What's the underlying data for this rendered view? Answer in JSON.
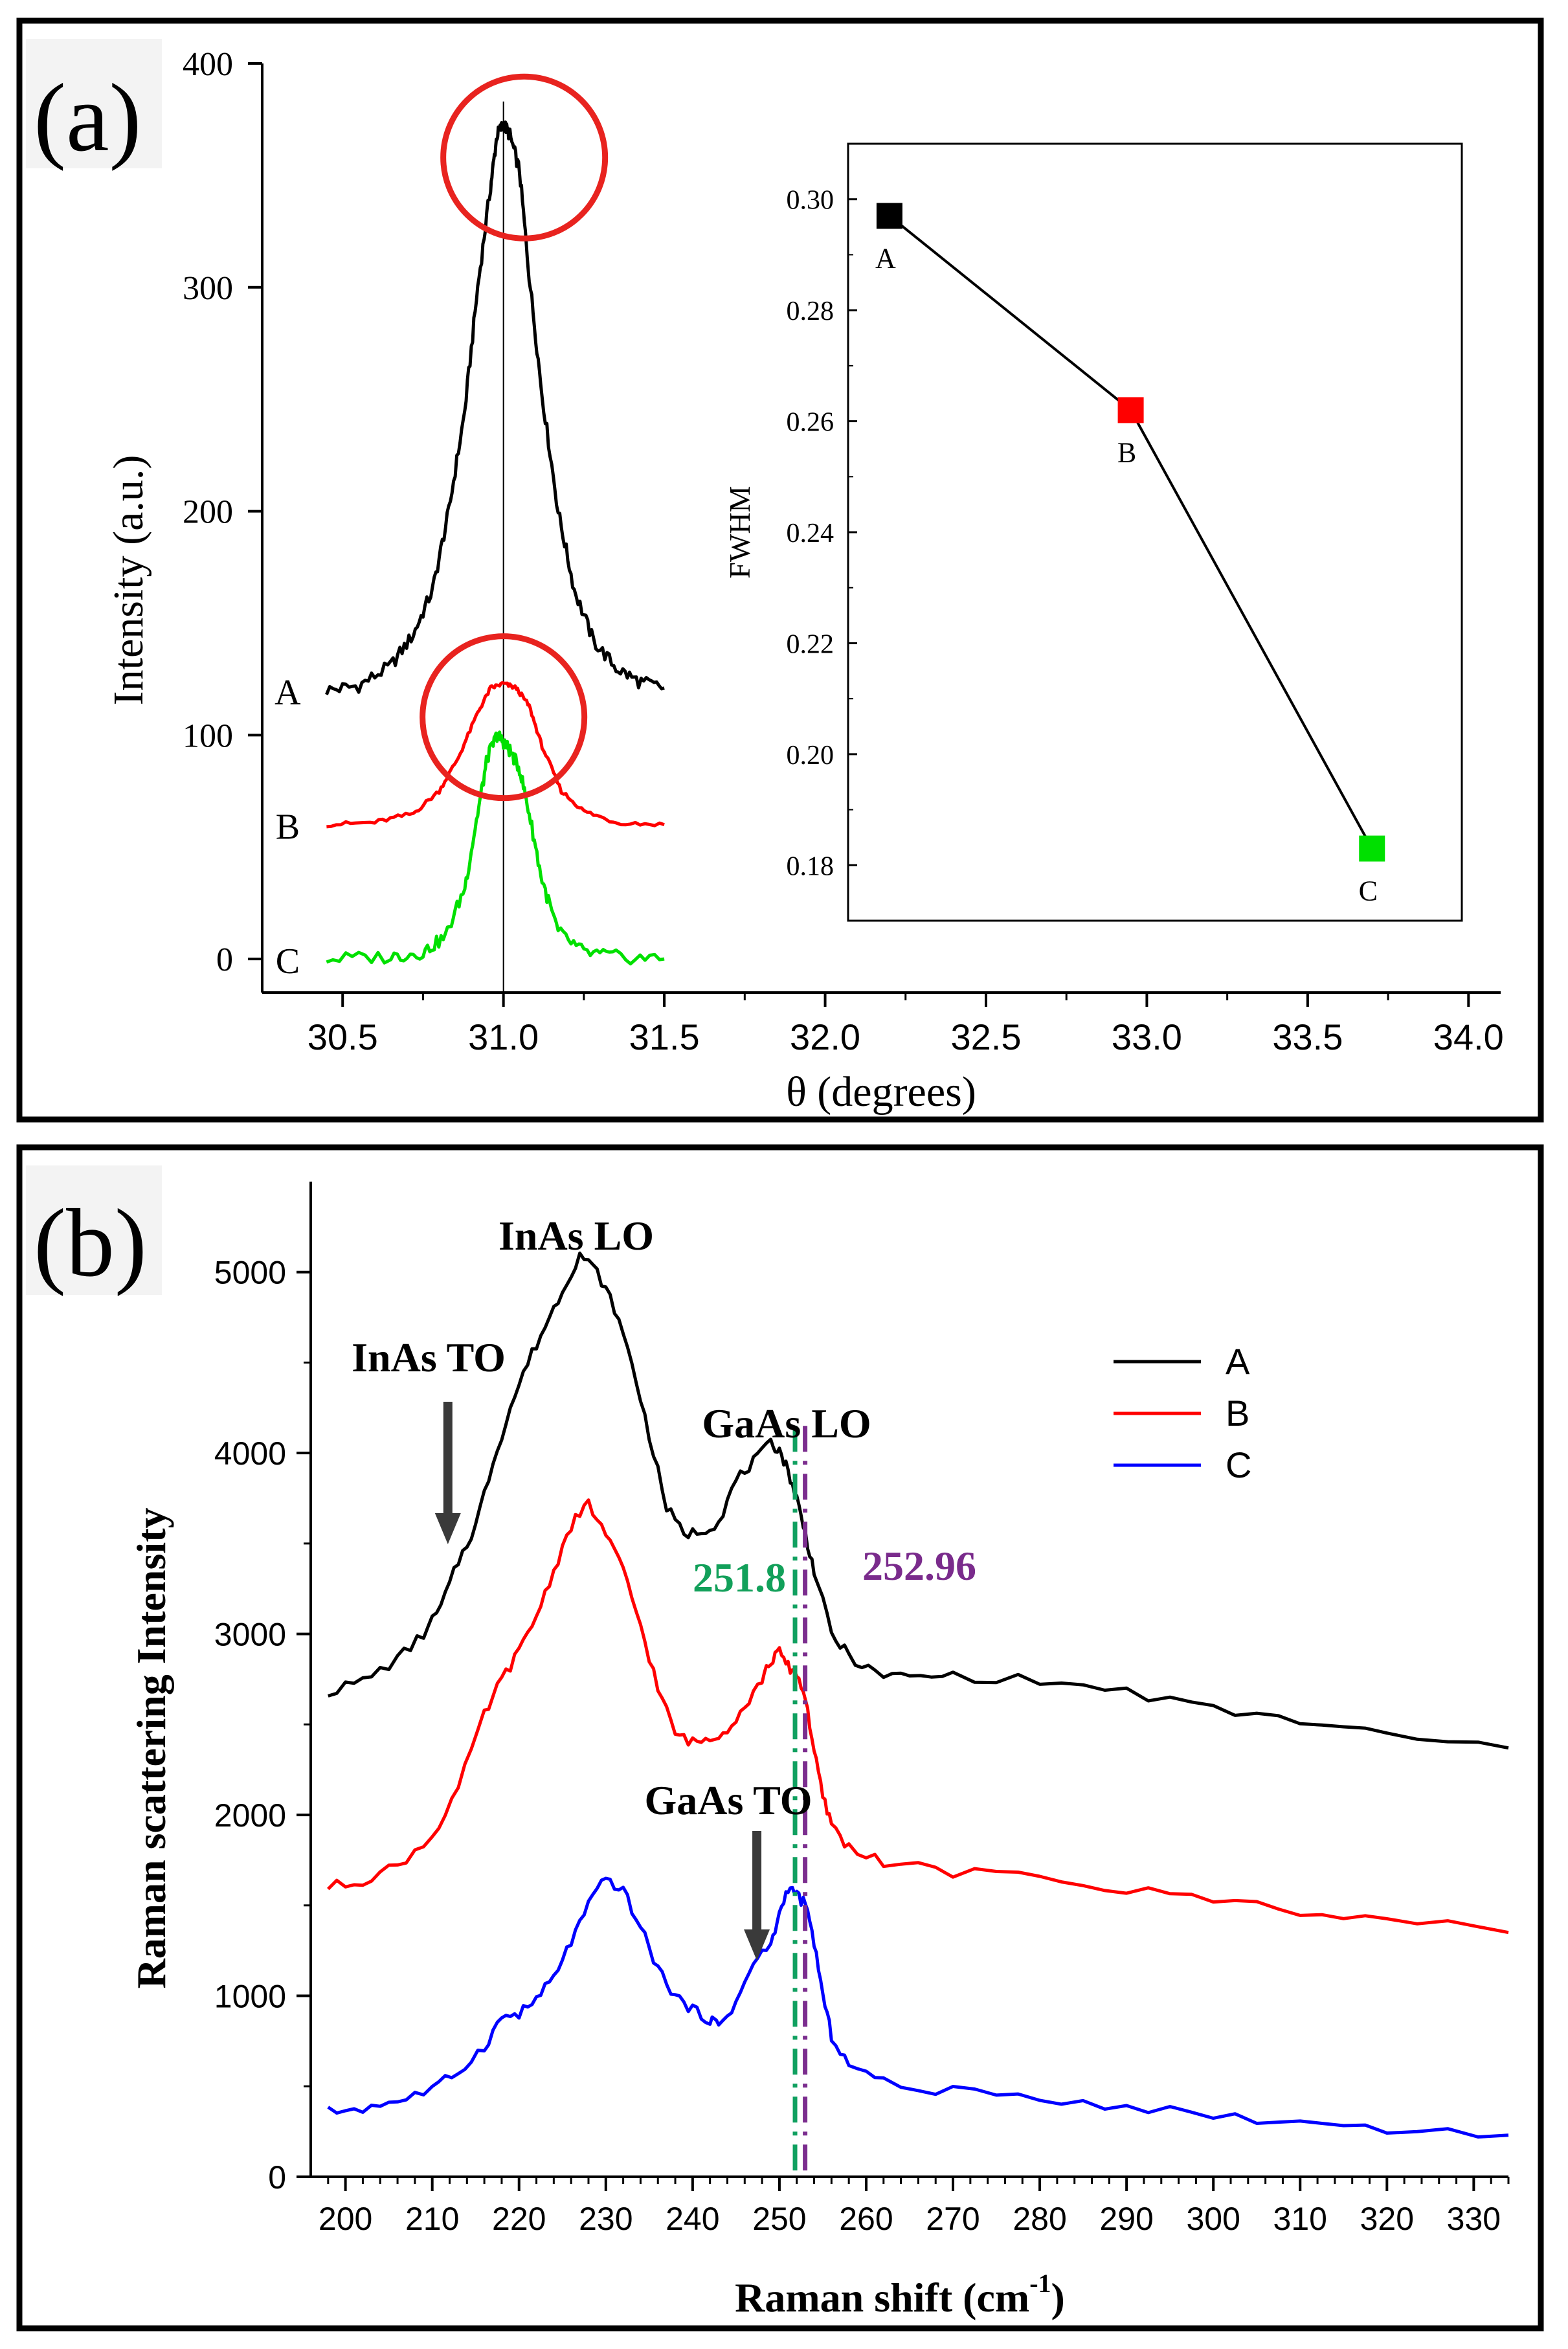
{
  "colors": {
    "black": "#000000",
    "red": "#ff0000",
    "green": "#00e000",
    "blue": "#0000ff",
    "circle": "#e8231f",
    "dash_green": "#10a060",
    "dash_purple": "#7b2d8e",
    "annot_green": "#12a05a",
    "annot_purple": "#7a2b8c",
    "arrow": "#3a3a3a"
  },
  "panel_a": {
    "label": "(a)",
    "xlabel": "θ (degrees)",
    "ylabel": "Intensity (a.u.)",
    "xlim": [
      30.25,
      34.1
    ],
    "ylim": [
      -15,
      400
    ],
    "xticks": [
      "30.5",
      "31.0",
      "31.5",
      "32.0",
      "32.5",
      "33.0",
      "33.5",
      "34.0"
    ],
    "xtick_values": [
      30.5,
      31.0,
      31.5,
      32.0,
      32.5,
      33.0,
      33.5,
      34.0
    ],
    "yticks": [
      "0",
      "100",
      "200",
      "300",
      "400"
    ],
    "ytick_values": [
      0,
      100,
      200,
      300,
      400
    ],
    "reference_line_x": 31.0,
    "series_labels": [
      "A",
      "B",
      "C"
    ],
    "inset": {
      "ylabel": "FWHM",
      "yticks": [
        "0.18",
        "0.20",
        "0.22",
        "0.24",
        "0.26",
        "0.28",
        "0.30"
      ],
      "ytick_values": [
        0.18,
        0.2,
        0.22,
        0.24,
        0.26,
        0.28,
        0.3
      ],
      "ylim": [
        0.17,
        0.31
      ],
      "points": [
        {
          "label": "A",
          "value": 0.297
        },
        {
          "label": "B",
          "value": 0.262
        },
        {
          "label": "C",
          "value": 0.183
        }
      ]
    }
  },
  "panel_b": {
    "label": "(b)",
    "xlabel": "Raman  shift (cm",
    "xlabel_sup": "-1",
    "xlabel_end": ")",
    "ylabel": "Raman  scattering Intensity",
    "xlim": [
      196,
      334
    ],
    "ylim": [
      0,
      5500
    ],
    "xticks": [
      "200",
      "210",
      "220",
      "230",
      "240",
      "250",
      "260",
      "270",
      "280",
      "290",
      "300",
      "310",
      "320",
      "330"
    ],
    "xtick_values": [
      200,
      210,
      220,
      230,
      240,
      250,
      260,
      270,
      280,
      290,
      300,
      310,
      320,
      330
    ],
    "yticks": [
      "0",
      "1000",
      "2000",
      "3000",
      "4000",
      "5000"
    ],
    "ytick_values": [
      0,
      1000,
      2000,
      3000,
      4000,
      5000
    ],
    "legend": [
      "A",
      "B",
      "C"
    ],
    "annotations": {
      "inas_lo": "InAs LO",
      "inas_to": "InAs TO",
      "gaas_lo": "GaAs LO",
      "gaas_to": "GaAs TO",
      "line1": "251.8",
      "line2": "252.96"
    },
    "vlines": [
      251.8,
      252.96
    ]
  },
  "chart_data": [
    {
      "type": "line",
      "title": "(a)",
      "xlabel": "θ (degrees)",
      "ylabel": "Intensity (a.u.)",
      "xlim": [
        30.25,
        34.1
      ],
      "ylim": [
        -15,
        400
      ],
      "series": [
        {
          "name": "A",
          "x": [
            30.45,
            30.55,
            30.65,
            30.72,
            30.78,
            30.83,
            30.88,
            30.92,
            30.96,
            30.98,
            31.0,
            31.02,
            31.05,
            31.08,
            31.12,
            31.17,
            31.22,
            31.28,
            31.35,
            31.42,
            31.5
          ],
          "values": [
            120,
            122,
            131,
            145,
            165,
            200,
            245,
            300,
            345,
            368,
            373,
            368,
            352,
            305,
            252,
            200,
            165,
            142,
            130,
            124,
            121
          ]
        },
        {
          "name": "B",
          "x": [
            30.45,
            30.6,
            30.72,
            30.8,
            30.86,
            30.92,
            30.96,
            31.0,
            31.04,
            31.08,
            31.12,
            31.18,
            31.25,
            31.35,
            31.5
          ],
          "values": [
            60,
            61,
            65,
            75,
            90,
            110,
            121,
            123,
            121,
            113,
            95,
            75,
            66,
            61,
            60
          ]
        },
        {
          "name": "C",
          "x": [
            30.45,
            30.65,
            30.75,
            30.82,
            30.88,
            30.92,
            30.95,
            30.98,
            31.0,
            31.02,
            31.05,
            31.08,
            31.12,
            31.17,
            31.25,
            31.35,
            31.5
          ],
          "values": [
            0,
            1,
            3,
            10,
            32,
            65,
            90,
            100,
            97,
            93,
            85,
            65,
            35,
            12,
            3,
            1,
            0
          ]
        }
      ],
      "inset": {
        "type": "line",
        "ylabel": "FWHM",
        "categories": [
          "A",
          "B",
          "C"
        ],
        "x": [
          32.2,
          32.95,
          33.7
        ],
        "values": [
          0.297,
          0.262,
          0.183
        ]
      }
    },
    {
      "type": "line",
      "title": "(b)",
      "xlabel": "Raman  shift (cm-1)",
      "ylabel": "Raman  scattering Intensity",
      "xlim": [
        196,
        334
      ],
      "ylim": [
        0,
        5500
      ],
      "series": [
        {
          "name": "A",
          "x": [
            198,
            202,
            206,
            209,
            211,
            213,
            215,
            217,
            219,
            221,
            223,
            225,
            227,
            229,
            231,
            233,
            235,
            237,
            239,
            241,
            243,
            245,
            247,
            249,
            250,
            251,
            252,
            253,
            254,
            256,
            258,
            261,
            265,
            270,
            280,
            290,
            300,
            310,
            320,
            334
          ],
          "values": [
            2680,
            2740,
            2860,
            3000,
            3150,
            3400,
            3600,
            3950,
            4250,
            4500,
            4700,
            4900,
            5100,
            5000,
            4800,
            4500,
            4100,
            3700,
            3550,
            3570,
            3620,
            3850,
            3950,
            4050,
            4020,
            3900,
            3750,
            3550,
            3350,
            3000,
            2880,
            2780,
            2760,
            2770,
            2740,
            2680,
            2580,
            2520,
            2440,
            2370
          ]
        },
        {
          "name": "B",
          "x": [
            198,
            202,
            206,
            210,
            213,
            216,
            218,
            220,
            222,
            224,
            226,
            228,
            230,
            232,
            234,
            236,
            238,
            240,
            242,
            244,
            246,
            248,
            249,
            250,
            251,
            252,
            253,
            254,
            255,
            256,
            258,
            262,
            270,
            280,
            290,
            300,
            310,
            320,
            334
          ],
          "values": [
            1600,
            1640,
            1720,
            1880,
            2150,
            2550,
            2750,
            2900,
            3100,
            3350,
            3600,
            3720,
            3550,
            3350,
            3050,
            2700,
            2450,
            2400,
            2420,
            2480,
            2600,
            2750,
            2850,
            2900,
            2820,
            2780,
            2650,
            2350,
            2100,
            1950,
            1820,
            1740,
            1680,
            1660,
            1580,
            1540,
            1470,
            1420,
            1350
          ]
        },
        {
          "name": "C",
          "x": [
            198,
            202,
            206,
            210,
            213,
            216,
            218,
            220,
            222,
            224,
            226,
            228,
            230,
            232,
            234,
            236,
            238,
            240,
            242,
            243,
            245,
            247,
            249,
            250,
            251,
            252,
            253,
            254,
            255,
            256,
            258,
            262,
            270,
            280,
            290,
            300,
            310,
            320,
            334
          ],
          "values": [
            360,
            380,
            420,
            480,
            580,
            720,
            880,
            900,
            980,
            1100,
            1300,
            1500,
            1650,
            1580,
            1380,
            1150,
            1000,
            920,
            870,
            840,
            960,
            1180,
            1280,
            1450,
            1600,
            1560,
            1500,
            1300,
            1000,
            780,
            620,
            520,
            470,
            440,
            390,
            340,
            300,
            270,
            230
          ]
        }
      ]
    }
  ]
}
